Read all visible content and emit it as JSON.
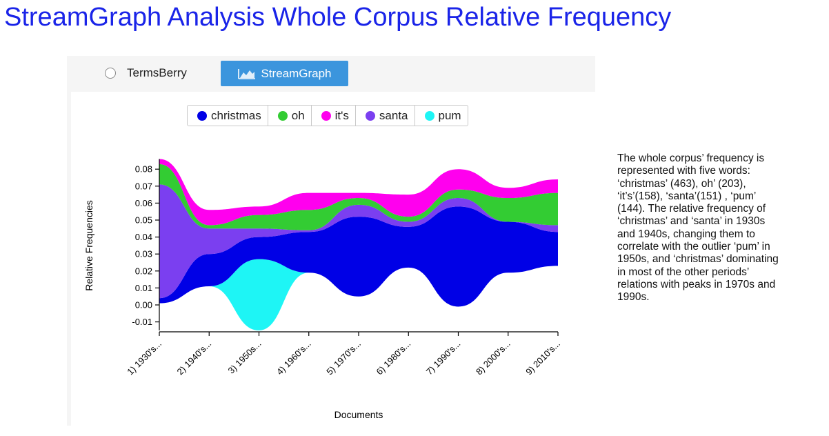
{
  "page": {
    "title": "StreamGraph Analysis Whole Corpus Relative Frequency",
    "description": "The whole corpus’ frequency is\nrepresented with five words:\n‘christmas’ (463), oh’ (203),\n‘it’s’(158), ‘santa’(151) , ‘pum’\n(144). The relative frequency of\n‘christmas’ and ‘santa’ in 1930s\nand 1940s, changing them to\ncorrelate with the outlier ‘pum’ in\n1950s, and ‘christmas’  dominating\nin most of the other periods’\nrelations with peaks in 1970s and\n1990s."
  },
  "toolbar": {
    "radio_label": "TermsBerry",
    "button_label": "StreamGraph",
    "button_icon": "area-chart-icon"
  },
  "colors": {
    "title": "#1a24e8",
    "button": "#3b95dd"
  },
  "chart_data": {
    "type": "area",
    "subtype": "streamgraph",
    "xlabel": "Documents",
    "ylabel": "Relative Frequencies",
    "ylim": [
      -0.015,
      0.086
    ],
    "yticks": [
      "0.08",
      "0.07",
      "0.06",
      "0.05",
      "0.04",
      "0.03",
      "0.02",
      "0.01",
      "0.00",
      "-0.01"
    ],
    "ytick_values": [
      0.08,
      0.07,
      0.06,
      0.05,
      0.04,
      0.03,
      0.02,
      0.01,
      0.0,
      -0.01
    ],
    "categories": [
      "1) 1930's...",
      "2) 1940's...",
      "3) 1950s...",
      "4) 1960's...",
      "5) 1970's...",
      "6) 1980's...",
      "7) 1990's...",
      "8) 2000's...",
      "9) 2010's..."
    ],
    "baseline": [
      0.001,
      0.011,
      -0.015,
      0.019,
      0.005,
      0.022,
      -0.001,
      0.019,
      0.023
    ],
    "series": [
      {
        "name": "pum",
        "color": "#1ef5f5",
        "values": [
          0.0,
          0.0,
          0.042,
          0.0,
          0.0,
          0.0,
          0.0,
          0.0,
          0.0
        ]
      },
      {
        "name": "christmas",
        "color": "#0000e6",
        "values": [
          0.003,
          0.019,
          0.013,
          0.024,
          0.047,
          0.024,
          0.059,
          0.03,
          0.02
        ]
      },
      {
        "name": "santa",
        "color": "#7b3ff0",
        "values": [
          0.067,
          0.015,
          0.005,
          0.001,
          0.007,
          0.003,
          0.005,
          0.0,
          0.004
        ]
      },
      {
        "name": "oh",
        "color": "#33cc33",
        "values": [
          0.012,
          0.002,
          0.008,
          0.012,
          0.004,
          0.003,
          0.005,
          0.014,
          0.019
        ]
      },
      {
        "name": "it's",
        "color": "#ff00ee",
        "values": [
          0.003,
          0.009,
          0.005,
          0.01,
          0.003,
          0.013,
          0.012,
          0.006,
          0.008
        ]
      }
    ],
    "legend": [
      {
        "name": "christmas",
        "color": "#0000e6"
      },
      {
        "name": "oh",
        "color": "#33cc33"
      },
      {
        "name": "it's",
        "color": "#ff00ee"
      },
      {
        "name": "santa",
        "color": "#7b3ff0"
      },
      {
        "name": "pum",
        "color": "#1ef5f5"
      }
    ],
    "legend_position": "top"
  }
}
